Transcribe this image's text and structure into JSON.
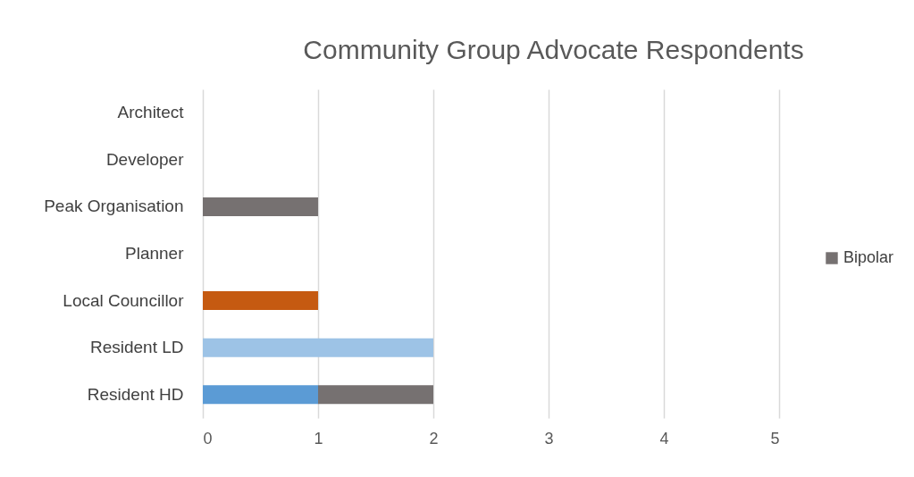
{
  "chart_data": {
    "type": "bar",
    "title": "Community Group Advocate Respondents",
    "orientation": "horizontal",
    "stacked": true,
    "categories": [
      "Architect",
      "Developer",
      "Peak Organisation",
      "Planner",
      "Local Councillor",
      "Resident LD",
      "Resident HD"
    ],
    "series": [
      {
        "color": "#5b9bd5",
        "values": [
          null,
          null,
          null,
          null,
          null,
          null,
          1
        ]
      },
      {
        "color": "#9dc3e6",
        "values": [
          null,
          null,
          null,
          null,
          null,
          2,
          null
        ]
      },
      {
        "color": "#c55a11",
        "values": [
          null,
          null,
          null,
          null,
          1,
          null,
          null
        ]
      },
      {
        "name": "Bipolar",
        "color": "#767171",
        "values": [
          null,
          null,
          1,
          null,
          null,
          null,
          1
        ]
      }
    ],
    "xlim": [
      0,
      5
    ],
    "xticks": [
      0,
      1,
      2,
      3,
      4,
      5
    ],
    "grid": "x",
    "legend": "right"
  }
}
